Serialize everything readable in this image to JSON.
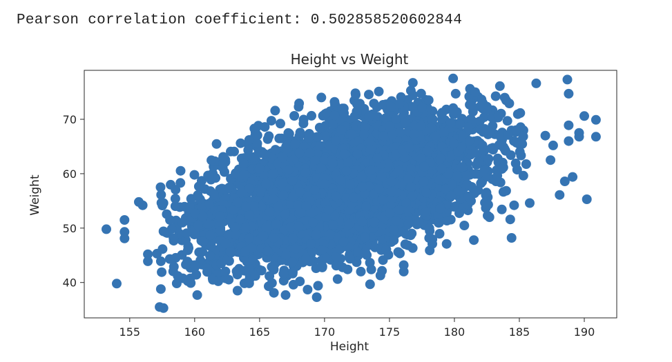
{
  "output_line": "Pearson correlation coefficient: 0.502858520602844",
  "colors": {
    "marker": "#3574b3",
    "axes": "#262626",
    "background": "#ffffff"
  },
  "chart_data": {
    "type": "scatter",
    "title": "Height vs Weight",
    "xlabel": "Height",
    "ylabel": "Weight",
    "xlim": [
      151.5,
      192.5
    ],
    "ylim": [
      33.5,
      79
    ],
    "xticks": [
      155,
      160,
      165,
      170,
      175,
      180,
      185,
      190
    ],
    "yticks": [
      40,
      50,
      60,
      70
    ],
    "grid": false,
    "legend": "none",
    "pearson_r": 0.502858520602844,
    "core_cloud": {
      "description": "dense cloud of several thousand overlapping points",
      "x_mean": 171.5,
      "x_sd": 5.2,
      "y_mean": 57.5,
      "y_sd": 6.5,
      "correlation": 0.502858520602844,
      "n_points": 5000
    },
    "points": [
      {
        "x": 153.2,
        "y": 49.8
      },
      {
        "x": 154.0,
        "y": 39.8
      },
      {
        "x": 154.6,
        "y": 51.5
      },
      {
        "x": 154.6,
        "y": 49.3
      },
      {
        "x": 154.6,
        "y": 48.1
      },
      {
        "x": 155.7,
        "y": 54.8
      },
      {
        "x": 156.0,
        "y": 54.2
      },
      {
        "x": 156.4,
        "y": 45.2
      },
      {
        "x": 156.4,
        "y": 43.9
      },
      {
        "x": 157.1,
        "y": 45.3
      },
      {
        "x": 157.4,
        "y": 43.9
      },
      {
        "x": 157.3,
        "y": 35.5
      },
      {
        "x": 157.6,
        "y": 35.3
      },
      {
        "x": 157.4,
        "y": 38.8
      },
      {
        "x": 157.6,
        "y": 49.4
      },
      {
        "x": 157.6,
        "y": 54.6
      },
      {
        "x": 158.1,
        "y": 51.5
      },
      {
        "x": 158.4,
        "y": 42.9
      },
      {
        "x": 158.7,
        "y": 41.2
      },
      {
        "x": 158.9,
        "y": 58.3
      },
      {
        "x": 159.7,
        "y": 39.9
      },
      {
        "x": 160.2,
        "y": 37.7
      },
      {
        "x": 161.4,
        "y": 40.5
      },
      {
        "x": 162.2,
        "y": 61.9
      },
      {
        "x": 162.2,
        "y": 63.1
      },
      {
        "x": 163.3,
        "y": 38.5
      },
      {
        "x": 164.2,
        "y": 66.2
      },
      {
        "x": 164.6,
        "y": 68.3
      },
      {
        "x": 165.4,
        "y": 68.6
      },
      {
        "x": 165.7,
        "y": 39.3
      },
      {
        "x": 166.1,
        "y": 38.1
      },
      {
        "x": 166.2,
        "y": 71.6
      },
      {
        "x": 166.6,
        "y": 69.2
      },
      {
        "x": 167.0,
        "y": 37.7
      },
      {
        "x": 167.6,
        "y": 39.6
      },
      {
        "x": 168.1,
        "y": 40.2
      },
      {
        "x": 168.7,
        "y": 38.7
      },
      {
        "x": 169.4,
        "y": 37.3
      },
      {
        "x": 169.5,
        "y": 39.4
      },
      {
        "x": 170.9,
        "y": 43.1
      },
      {
        "x": 171.5,
        "y": 71.1
      },
      {
        "x": 172.4,
        "y": 74.5
      },
      {
        "x": 172.5,
        "y": 72.8
      },
      {
        "x": 172.8,
        "y": 42.0
      },
      {
        "x": 173.6,
        "y": 42.4
      },
      {
        "x": 174.3,
        "y": 41.3
      },
      {
        "x": 176.1,
        "y": 43.2
      },
      {
        "x": 176.1,
        "y": 42.0
      },
      {
        "x": 176.8,
        "y": 76.7
      },
      {
        "x": 178.1,
        "y": 45.9
      },
      {
        "x": 178.3,
        "y": 47.1
      },
      {
        "x": 179.4,
        "y": 47.1
      },
      {
        "x": 179.9,
        "y": 77.5
      },
      {
        "x": 181.5,
        "y": 47.8
      },
      {
        "x": 180.1,
        "y": 74.7
      },
      {
        "x": 181.2,
        "y": 75.6
      },
      {
        "x": 181.6,
        "y": 75.0
      },
      {
        "x": 183.5,
        "y": 76.1
      },
      {
        "x": 184.3,
        "y": 51.6
      },
      {
        "x": 184.4,
        "y": 48.2
      },
      {
        "x": 184.6,
        "y": 54.2
      },
      {
        "x": 185.8,
        "y": 54.6
      },
      {
        "x": 186.3,
        "y": 76.6
      },
      {
        "x": 187.0,
        "y": 67.0
      },
      {
        "x": 187.4,
        "y": 62.5
      },
      {
        "x": 187.6,
        "y": 65.2
      },
      {
        "x": 188.1,
        "y": 56.1
      },
      {
        "x": 188.5,
        "y": 58.6
      },
      {
        "x": 188.7,
        "y": 77.3
      },
      {
        "x": 188.8,
        "y": 74.7
      },
      {
        "x": 188.8,
        "y": 68.9
      },
      {
        "x": 188.8,
        "y": 66.0
      },
      {
        "x": 189.1,
        "y": 59.4
      },
      {
        "x": 189.6,
        "y": 67.5
      },
      {
        "x": 189.6,
        "y": 66.8
      },
      {
        "x": 190.0,
        "y": 70.6
      },
      {
        "x": 190.2,
        "y": 55.3
      },
      {
        "x": 190.9,
        "y": 69.9
      },
      {
        "x": 190.9,
        "y": 66.8
      }
    ]
  }
}
